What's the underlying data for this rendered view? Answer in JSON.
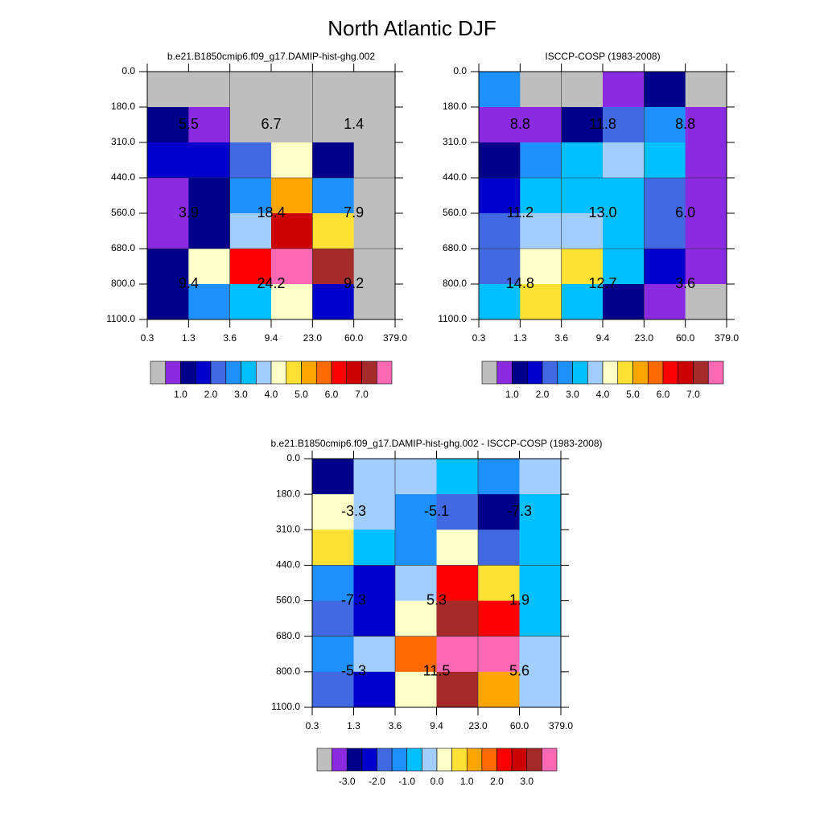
{
  "suptitle": "North Atlantic DJF",
  "chart_data": [
    {
      "type": "heatmap",
      "title": "b.e21.B1850cmip6.f09_g17.DAMIP-hist-ghg.002",
      "xticks": [
        0.3,
        1.3,
        3.6,
        9.4,
        {
          "value": 23,
          "label": "23.0"
        },
        {
          "value": 60,
          "label": "60.0"
        },
        {
          "value": 379,
          "label": "379.0"
        }
      ],
      "yticks": [
        {
          "value": 0,
          "label": "0.0"
        },
        {
          "value": 180,
          "label": "180.0"
        },
        {
          "value": 310,
          "label": "310.0"
        },
        {
          "value": 440,
          "label": "440.0"
        },
        {
          "value": 560,
          "label": "560.0"
        },
        {
          "value": 680,
          "label": "680.0"
        },
        {
          "value": 800,
          "label": "800.0"
        },
        {
          "value": 1100,
          "label": "1100.0"
        }
      ],
      "values": [
        [
          0.1,
          0.1,
          0.1,
          0.1,
          0.1,
          0.1
        ],
        [
          1.25,
          0.75,
          0.1,
          0.1,
          0.1,
          0.1
        ],
        [
          1.75,
          1.75,
          2.25,
          4.25,
          1.25,
          0.1
        ],
        [
          0.75,
          1.25,
          2.75,
          5.25,
          2.75,
          0.1
        ],
        [
          0.75,
          1.25,
          3.75,
          6.75,
          4.75,
          0.1
        ],
        [
          1.25,
          4.25,
          6.25,
          7.75,
          7.25,
          0.1
        ],
        [
          1.25,
          2.75,
          3.25,
          4.25,
          1.75,
          0.1
        ]
      ],
      "blocks": {
        "values": [
          [
            5.5,
            6.7,
            1.4
          ],
          [
            3.9,
            18.4,
            7.9
          ],
          [
            9.4,
            24.2,
            9.2
          ]
        ],
        "value_labels": [
          [
            "5.5",
            "6.7",
            "1.4"
          ],
          [
            "3.9",
            "18.4",
            "7.9"
          ],
          [
            "9.4",
            "24.2",
            "9.2"
          ]
        ]
      },
      "colorbar": {
        "colors": [
          "#bebebe",
          "#8a2be2",
          "#00008b",
          "#0000cd",
          "#4169e1",
          "#1e90ff",
          "#00bfff",
          "#a2cdff",
          "#ffffc8",
          "#ffe135",
          "#ffa500",
          "#ff6a00",
          "#ff0000",
          "#cc0000",
          "#a52a2a",
          "#ff69b4"
        ],
        "levels": [
          0.5,
          1,
          1.5,
          2,
          2.5,
          3,
          3.5,
          4,
          4.5,
          5,
          5.5,
          6,
          6.5,
          7,
          7.5
        ],
        "ticks": [
          {
            "value": 1,
            "label": "1.0"
          },
          {
            "value": 2,
            "label": "2.0"
          },
          {
            "value": 3,
            "label": "3.0"
          },
          {
            "value": 4,
            "label": "4.0"
          },
          {
            "value": 5,
            "label": "5.0"
          },
          {
            "value": 6,
            "label": "6.0"
          },
          {
            "value": 7,
            "label": "7.0"
          }
        ]
      }
    },
    {
      "type": "heatmap",
      "title": "ISCCP-COSP (1983-2008)",
      "xticks": [
        0.3,
        1.3,
        3.6,
        9.4,
        {
          "value": 23,
          "label": "23.0"
        },
        {
          "value": 60,
          "label": "60.0"
        },
        {
          "value": 379,
          "label": "379.0"
        }
      ],
      "yticks": [
        {
          "value": 0,
          "label": "0.0"
        },
        {
          "value": 180,
          "label": "180.0"
        },
        {
          "value": 310,
          "label": "310.0"
        },
        {
          "value": 440,
          "label": "440.0"
        },
        {
          "value": 560,
          "label": "560.0"
        },
        {
          "value": 680,
          "label": "680.0"
        },
        {
          "value": 800,
          "label": "800.0"
        },
        {
          "value": 1100,
          "label": "1100.0"
        }
      ],
      "values": [
        [
          2.75,
          0.1,
          0.1,
          0.75,
          1.25,
          0.1
        ],
        [
          0.75,
          0.75,
          1.25,
          2.25,
          2.75,
          0.75
        ],
        [
          1.25,
          2.75,
          3.25,
          3.75,
          3.25,
          0.75
        ],
        [
          1.75,
          3.25,
          3.25,
          3.25,
          2.25,
          0.75
        ],
        [
          2.25,
          3.75,
          3.75,
          3.25,
          2.25,
          0.75
        ],
        [
          2.25,
          4.25,
          4.75,
          3.25,
          1.75,
          0.75
        ],
        [
          3.25,
          4.75,
          3.25,
          1.25,
          0.75,
          0.1
        ]
      ],
      "blocks": {
        "values": [
          [
            8.8,
            11.8,
            8.8
          ],
          [
            11.2,
            13,
            6
          ],
          [
            14.8,
            12.7,
            3.6
          ]
        ],
        "value_labels": [
          [
            "8.8",
            "11.8",
            "8.8"
          ],
          [
            "11.2",
            "13.0",
            "6.0"
          ],
          [
            "14.8",
            "12.7",
            "3.6"
          ]
        ]
      },
      "colorbar": {
        "colors": [
          "#bebebe",
          "#8a2be2",
          "#00008b",
          "#0000cd",
          "#4169e1",
          "#1e90ff",
          "#00bfff",
          "#a2cdff",
          "#ffffc8",
          "#ffe135",
          "#ffa500",
          "#ff6a00",
          "#ff0000",
          "#cc0000",
          "#a52a2a",
          "#ff69b4"
        ],
        "levels": [
          0.5,
          1,
          1.5,
          2,
          2.5,
          3,
          3.5,
          4,
          4.5,
          5,
          5.5,
          6,
          6.5,
          7,
          7.5
        ],
        "ticks": [
          {
            "value": 1,
            "label": "1.0"
          },
          {
            "value": 2,
            "label": "2.0"
          },
          {
            "value": 3,
            "label": "3.0"
          },
          {
            "value": 4,
            "label": "4.0"
          },
          {
            "value": 5,
            "label": "5.0"
          },
          {
            "value": 6,
            "label": "6.0"
          },
          {
            "value": 7,
            "label": "7.0"
          }
        ]
      }
    },
    {
      "type": "heatmap",
      "title": "b.e21.B1850cmip6.f09_g17.DAMIP-hist-ghg.002 - ISCCP-COSP (1983-2008)",
      "xticks": [
        0.3,
        1.3,
        3.6,
        9.4,
        {
          "value": 23,
          "label": "23.0"
        },
        {
          "value": 60,
          "label": "60.0"
        },
        {
          "value": 379,
          "label": "379.0"
        }
      ],
      "yticks": [
        {
          "value": 0,
          "label": "0.0"
        },
        {
          "value": 180,
          "label": "180.0"
        },
        {
          "value": 310,
          "label": "310.0"
        },
        {
          "value": 440,
          "label": "440.0"
        },
        {
          "value": 560,
          "label": "560.0"
        },
        {
          "value": 680,
          "label": "680.0"
        },
        {
          "value": 800,
          "label": "800.0"
        },
        {
          "value": 1100,
          "label": "1100.0"
        }
      ],
      "values": [
        [
          -2.75,
          -0.25,
          -0.25,
          -0.75,
          -1.25,
          -0.25
        ],
        [
          0.25,
          -0.25,
          -1.25,
          -1.75,
          -2.75,
          -0.75
        ],
        [
          0.75,
          -0.75,
          -1.25,
          0.25,
          -1.75,
          -0.75
        ],
        [
          -1.25,
          -2.25,
          -0.25,
          2.25,
          0.75,
          -0.75
        ],
        [
          -1.75,
          -2.25,
          0.25,
          3.25,
          2.25,
          -0.75
        ],
        [
          -1.25,
          -0.25,
          1.75,
          3.75,
          3.75,
          -0.25
        ],
        [
          -1.75,
          -2.25,
          0.25,
          3.25,
          1.25,
          -0.25
        ]
      ],
      "blocks": {
        "values": [
          [
            -3.3,
            -5.1,
            -7.3
          ],
          [
            -7.3,
            5.3,
            1.9
          ],
          [
            -5.3,
            11.5,
            5.6
          ]
        ],
        "value_labels": [
          [
            "-3.3",
            "-5.1",
            "-7.3"
          ],
          [
            "-7.3",
            "5.3",
            "1.9"
          ],
          [
            "-5.3",
            "11.5",
            "5.6"
          ]
        ]
      },
      "colorbar": {
        "colors": [
          "#bebebe",
          "#8a2be2",
          "#00008b",
          "#0000cd",
          "#4169e1",
          "#1e90ff",
          "#00bfff",
          "#a2cdff",
          "#ffffc8",
          "#ffe135",
          "#ffa500",
          "#ff6a00",
          "#ff0000",
          "#cc0000",
          "#a52a2a",
          "#ff69b4"
        ],
        "levels": [
          -3.5,
          -3,
          -2.5,
          -2,
          -1.5,
          -1,
          -0.5,
          0,
          0.5,
          1,
          1.5,
          2,
          2.5,
          3,
          3.5
        ],
        "ticks": [
          {
            "value": -3,
            "label": "-3.0"
          },
          {
            "value": -2,
            "label": "-2.0"
          },
          {
            "value": -1,
            "label": "-1.0"
          },
          {
            "value": 0,
            "label": "0.0"
          },
          {
            "value": 1,
            "label": "1.0"
          },
          {
            "value": 2,
            "label": "2.0"
          },
          {
            "value": 3,
            "label": "3.0"
          }
        ]
      }
    }
  ]
}
